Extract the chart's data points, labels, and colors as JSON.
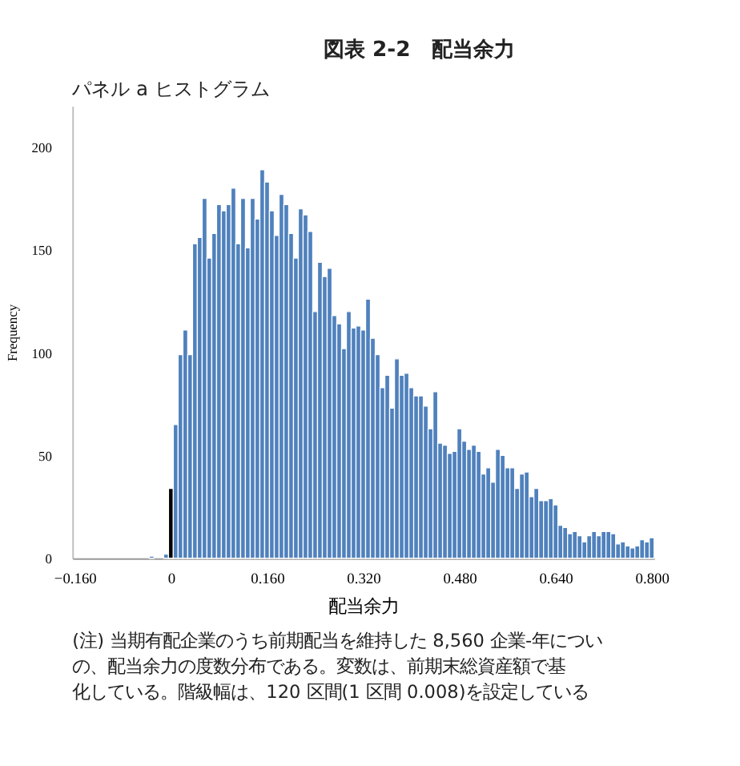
{
  "chart_data": {
    "type": "histogram",
    "title": "図表 2-2　配当余力",
    "subtitle": "パネル a ヒストグラム",
    "xlabel": "配当余力",
    "ylabel": "Frequency",
    "annotations": [
      "(注) 当期有配企業のうち前期配当を維持した 8,560 企業-年につい",
      "の、配当余力の度数分布である。変数は、前期末総資産額で基",
      "化している。階級幅は、120 区間(1 区間 0.008)を設定している"
    ],
    "bins": [
      -0.164,
      -0.156,
      -0.148,
      -0.14,
      -0.132,
      -0.124,
      -0.116,
      -0.108,
      -0.1,
      -0.092,
      -0.084,
      -0.076,
      -0.068,
      -0.06,
      -0.052,
      -0.044,
      -0.036,
      -0.028,
      -0.02,
      -0.012,
      -0.004,
      0.004,
      0.012,
      0.02,
      0.028,
      0.036,
      0.044,
      0.052,
      0.06,
      0.068,
      0.076,
      0.084,
      0.092,
      0.1,
      0.108,
      0.116,
      0.124,
      0.132,
      0.14,
      0.148,
      0.156,
      0.164,
      0.172,
      0.18,
      0.188,
      0.196,
      0.204,
      0.212,
      0.22,
      0.228,
      0.236,
      0.244,
      0.252,
      0.26,
      0.268,
      0.276,
      0.284,
      0.292,
      0.3,
      0.308,
      0.316,
      0.324,
      0.332,
      0.34,
      0.348,
      0.356,
      0.364,
      0.372,
      0.38,
      0.388,
      0.396,
      0.404,
      0.412,
      0.42,
      0.428,
      0.436,
      0.444,
      0.452,
      0.46,
      0.468,
      0.476,
      0.484,
      0.492,
      0.5,
      0.508,
      0.516,
      0.524,
      0.532,
      0.54,
      0.548,
      0.556,
      0.564,
      0.572,
      0.58,
      0.588,
      0.596,
      0.604,
      0.612,
      0.62,
      0.628,
      0.636,
      0.644,
      0.652,
      0.66,
      0.668,
      0.676,
      0.684,
      0.692,
      0.7,
      0.708,
      0.716,
      0.724,
      0.732,
      0.74,
      0.748,
      0.756,
      0.764,
      0.772,
      0.78,
      0.788,
      0.796,
      0.804
    ],
    "values": [
      0,
      0,
      0,
      0,
      0,
      0,
      0,
      0,
      0,
      0,
      0,
      0,
      0,
      0,
      0,
      0,
      1,
      0,
      0,
      2,
      34,
      65,
      99,
      111,
      99,
      153,
      156,
      175,
      146,
      158,
      172,
      169,
      172,
      180,
      153,
      175,
      151,
      175,
      165,
      189,
      183,
      169,
      157,
      177,
      172,
      158,
      146,
      170,
      167,
      159,
      120,
      144,
      137,
      141,
      118,
      114,
      102,
      120,
      112,
      113,
      111,
      126,
      107,
      99,
      83,
      89,
      73,
      97,
      89,
      90,
      83,
      79,
      79,
      74,
      63,
      81,
      56,
      55,
      51,
      52,
      63,
      57,
      53,
      55,
      52,
      41,
      44,
      37,
      53,
      50,
      44,
      44,
      34,
      41,
      42,
      30,
      34,
      28,
      28,
      29,
      26,
      16,
      15,
      12,
      13,
      11,
      8,
      11,
      13,
      11,
      13,
      13,
      12,
      7,
      8,
      6,
      5,
      6,
      9,
      8,
      10
    ],
    "colors": [
      "#4f81bd",
      "#4f81bd",
      "#4f81bd",
      "#4f81bd",
      "#4f81bd",
      "#4f81bd",
      "#4f81bd",
      "#4f81bd",
      "#4f81bd",
      "#4f81bd",
      "#4f81bd",
      "#4f81bd",
      "#4f81bd",
      "#4f81bd",
      "#4f81bd",
      "#4f81bd",
      "#4f81bd",
      "#4f81bd",
      "#4f81bd",
      "#4f81bd",
      "#000000",
      "#4f81bd",
      "#4f81bd",
      "#4f81bd",
      "#4f81bd",
      "#4f81bd",
      "#4f81bd",
      "#4f81bd",
      "#4f81bd",
      "#4f81bd",
      "#4f81bd",
      "#4f81bd",
      "#4f81bd",
      "#4f81bd",
      "#4f81bd",
      "#4f81bd",
      "#4f81bd",
      "#4f81bd",
      "#4f81bd",
      "#4f81bd",
      "#4f81bd",
      "#4f81bd",
      "#4f81bd",
      "#4f81bd",
      "#4f81bd",
      "#4f81bd",
      "#4f81bd",
      "#4f81bd",
      "#4f81bd",
      "#4f81bd",
      "#4f81bd",
      "#4f81bd",
      "#4f81bd",
      "#4f81bd",
      "#4f81bd",
      "#4f81bd",
      "#4f81bd",
      "#4f81bd",
      "#4f81bd",
      "#4f81bd",
      "#4f81bd",
      "#4f81bd",
      "#4f81bd",
      "#4f81bd",
      "#4f81bd",
      "#4f81bd",
      "#4f81bd",
      "#4f81bd",
      "#4f81bd",
      "#4f81bd",
      "#4f81bd",
      "#4f81bd",
      "#4f81bd",
      "#4f81bd",
      "#4f81bd",
      "#4f81bd",
      "#4f81bd",
      "#4f81bd",
      "#4f81bd",
      "#4f81bd",
      "#4f81bd",
      "#4f81bd",
      "#4f81bd",
      "#4f81bd",
      "#4f81bd",
      "#4f81bd",
      "#4f81bd",
      "#4f81bd",
      "#4f81bd",
      "#4f81bd",
      "#4f81bd",
      "#4f81bd",
      "#4f81bd",
      "#4f81bd",
      "#4f81bd",
      "#4f81bd",
      "#4f81bd",
      "#4f81bd",
      "#4f81bd",
      "#4f81bd",
      "#4f81bd",
      "#4f81bd",
      "#4f81bd",
      "#4f81bd",
      "#4f81bd",
      "#4f81bd",
      "#4f81bd",
      "#4f81bd",
      "#4f81bd",
      "#4f81bd",
      "#4f81bd",
      "#4f81bd",
      "#4f81bd",
      "#4f81bd",
      "#4f81bd",
      "#4f81bd",
      "#4f81bd",
      "#4f81bd",
      "#4f81bd",
      "#4f81bd",
      "#4f81bd"
    ],
    "xlim": [
      -0.164,
      0.804
    ],
    "xticks": [
      {
        "value": -0.16,
        "label": "−0.160"
      },
      0,
      {
        "value": 0.16,
        "label": "0.160"
      },
      {
        "value": 0.32,
        "label": "0.320"
      },
      {
        "value": 0.48,
        "label": "0.480"
      },
      {
        "value": 0.64,
        "label": "0.640"
      },
      {
        "value": 0.8,
        "label": "0.800"
      }
    ],
    "ylim": [
      0,
      220
    ],
    "yticks": [
      0,
      50,
      100,
      150,
      200
    ],
    "grid": false
  }
}
